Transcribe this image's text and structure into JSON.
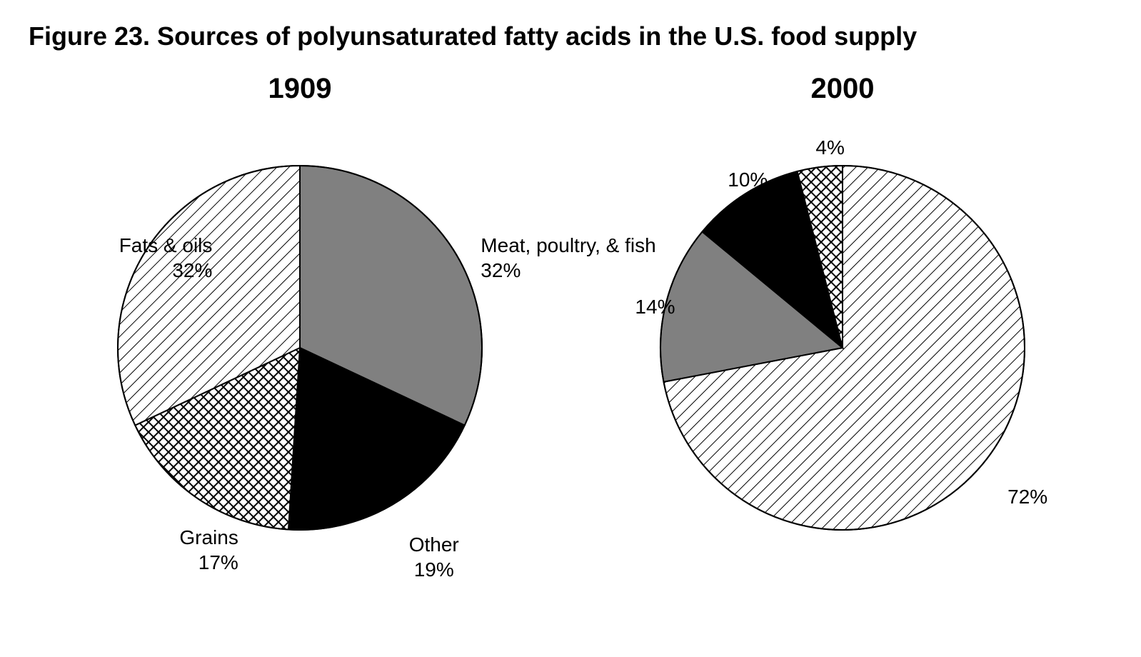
{
  "title": "Figure 23. Sources of polyunsaturated fatty acids in the U.S. food supply",
  "title_fontsize": 36,
  "background_color": "#ffffff",
  "text_color": "#000000",
  "label_fontsize": 28,
  "year_fontsize": 40,
  "categories": [
    {
      "key": "meat",
      "name": "Meat, poultry, & fish",
      "fill": "solid",
      "color": "#808080"
    },
    {
      "key": "other",
      "name": "Other",
      "fill": "solid",
      "color": "#000000"
    },
    {
      "key": "grains",
      "name": "Grains",
      "fill": "crosshatch",
      "color": "#000000"
    },
    {
      "key": "fats",
      "name": "Fats & oils",
      "fill": "diagonal",
      "color": "#000000"
    }
  ],
  "charts": [
    {
      "year": "1909",
      "type": "pie",
      "radius": 255,
      "start_angle_deg": -90,
      "stroke": "#000000",
      "stroke_width": 2,
      "slices": [
        {
          "category": "meat",
          "value": 32,
          "label_lines": [
            "Meat, poultry, & fish",
            "32%"
          ],
          "label_pos": "outside"
        },
        {
          "category": "other",
          "value": 19,
          "label_lines": [
            "Other",
            "19%"
          ],
          "label_pos": "outside"
        },
        {
          "category": "grains",
          "value": 17,
          "label_lines": [
            "Grains",
            "17%"
          ],
          "label_pos": "outside"
        },
        {
          "category": "fats",
          "value": 32,
          "label_lines": [
            "Fats & oils",
            "32%"
          ],
          "label_pos": "outside"
        }
      ]
    },
    {
      "year": "2000",
      "type": "pie",
      "radius": 255,
      "start_angle_deg": -90,
      "stroke": "#000000",
      "stroke_width": 2,
      "slices": [
        {
          "category": "fats",
          "value": 72,
          "label_lines": [
            "72%"
          ],
          "label_pos": "outside"
        },
        {
          "category": "meat",
          "value": 14,
          "label_lines": [
            "14%"
          ],
          "label_pos": "outside"
        },
        {
          "category": "other",
          "value": 10,
          "label_lines": [
            "10%"
          ],
          "label_pos": "outside"
        },
        {
          "category": "grains",
          "value": 4,
          "label_lines": [
            "4%"
          ],
          "label_pos": "outside"
        }
      ]
    }
  ],
  "hatch": {
    "diagonal": {
      "spacing": 12,
      "stroke": "#000000",
      "stroke_width": 2,
      "bg": "#ffffff"
    },
    "crosshatch": {
      "spacing": 14,
      "stroke": "#000000",
      "stroke_width": 2,
      "bg": "#ffffff"
    }
  }
}
